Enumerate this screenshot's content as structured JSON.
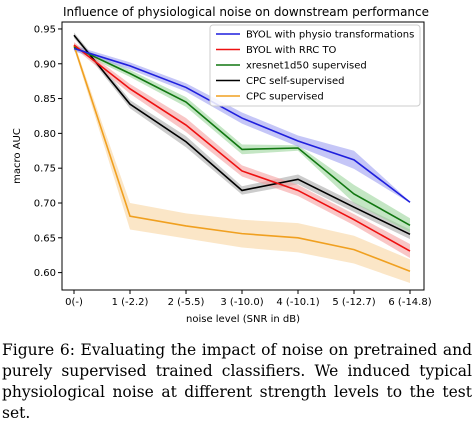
{
  "chart_data": {
    "type": "line",
    "title": "Influence of physiological noise on downstream performance",
    "xlabel": "noise level (SNR in dB)",
    "ylabel": "macro AUC",
    "categories": [
      "0(-)",
      "1 (-2.2)",
      "2 (-5.5)",
      "3 (-10.0)",
      "4 (-10.1)",
      "5 (-12.7)",
      "6 (-14.8)"
    ],
    "ylim": [
      0.575,
      0.96
    ],
    "yticks": [
      0.6,
      0.65,
      0.7,
      0.75,
      0.8,
      0.85,
      0.9,
      0.95
    ],
    "ytick_labels": [
      "0.60",
      "0.65",
      "0.70",
      "0.75",
      "0.80",
      "0.85",
      "0.90",
      "0.95"
    ],
    "legend_position": "top-right",
    "grid": false,
    "series": [
      {
        "name": "BYOL with physio transformations",
        "color": "#1f1fdd",
        "band": "#9ea0f2",
        "values": [
          0.922,
          0.897,
          0.866,
          0.822,
          0.789,
          0.762,
          0.701
        ],
        "lower": [
          0.918,
          0.892,
          0.86,
          0.814,
          0.781,
          0.749,
          0.7
        ],
        "upper": [
          0.926,
          0.902,
          0.872,
          0.83,
          0.797,
          0.775,
          0.702
        ]
      },
      {
        "name": "BYOL with RRC TO",
        "color": "#ee1111",
        "band": "#f5a0a0",
        "values": [
          0.927,
          0.864,
          0.812,
          0.746,
          0.718,
          0.676,
          0.631
        ],
        "lower": [
          0.923,
          0.857,
          0.802,
          0.738,
          0.71,
          0.668,
          0.621
        ],
        "upper": [
          0.931,
          0.871,
          0.822,
          0.754,
          0.726,
          0.684,
          0.641
        ]
      },
      {
        "name": "xresnet1d50 supervised",
        "color": "#117711",
        "band": "#9dd69d",
        "values": [
          0.924,
          0.886,
          0.845,
          0.777,
          0.779,
          0.713,
          0.668
        ],
        "lower": [
          0.92,
          0.881,
          0.838,
          0.77,
          0.775,
          0.7,
          0.658
        ],
        "upper": [
          0.928,
          0.891,
          0.852,
          0.784,
          0.783,
          0.726,
          0.678
        ]
      },
      {
        "name": "CPC self-supervised",
        "color": "#000000",
        "band": "#aaaaaa",
        "values": [
          0.941,
          0.842,
          0.788,
          0.718,
          0.734,
          0.694,
          0.655
        ],
        "lower": [
          0.937,
          0.836,
          0.78,
          0.712,
          0.727,
          0.687,
          0.648
        ],
        "upper": [
          0.945,
          0.848,
          0.796,
          0.724,
          0.741,
          0.701,
          0.662
        ]
      },
      {
        "name": "CPC supervised",
        "color": "#f0a020",
        "band": "#f9d6a2",
        "values": [
          0.926,
          0.681,
          0.667,
          0.656,
          0.65,
          0.633,
          0.602
        ],
        "lower": [
          0.922,
          0.662,
          0.649,
          0.636,
          0.629,
          0.613,
          0.585
        ],
        "upper": [
          0.93,
          0.7,
          0.685,
          0.676,
          0.671,
          0.653,
          0.619
        ]
      }
    ]
  },
  "caption": {
    "text": "Figure 6: Evaluating the impact of noise on pretrained and purely supervised trained classifiers. We induced typical physiological noise at different strength levels to the test set."
  }
}
